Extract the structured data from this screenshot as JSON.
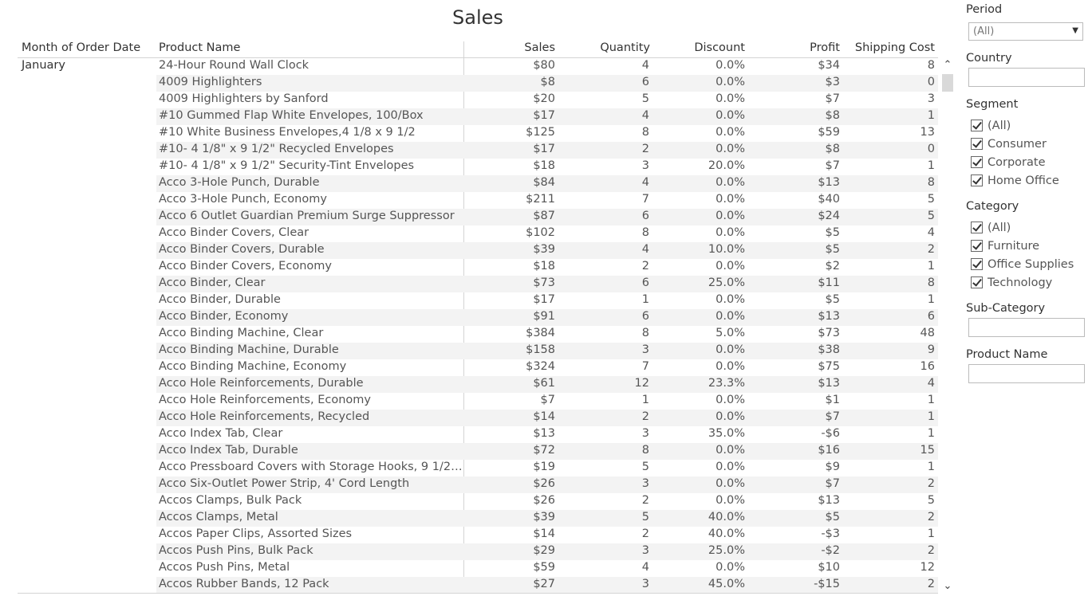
{
  "title": "Sales",
  "columns": {
    "month": "Month of Order Date",
    "product": "Product Name",
    "sales": "Sales",
    "quantity": "Quantity",
    "discount": "Discount",
    "profit": "Profit",
    "shipping": "Shipping Cost"
  },
  "month_value": "January",
  "rows": [
    {
      "name": "24-Hour Round Wall Clock",
      "sales": "$80",
      "qty": "4",
      "disc": "0.0%",
      "profit": "$34",
      "ship": "8"
    },
    {
      "name": "4009 Highlighters",
      "sales": "$8",
      "qty": "6",
      "disc": "0.0%",
      "profit": "$3",
      "ship": "0"
    },
    {
      "name": "4009 Highlighters by Sanford",
      "sales": "$20",
      "qty": "5",
      "disc": "0.0%",
      "profit": "$7",
      "ship": "3"
    },
    {
      "name": "#10 Gummed Flap White Envelopes, 100/Box",
      "sales": "$17",
      "qty": "4",
      "disc": "0.0%",
      "profit": "$8",
      "ship": "1"
    },
    {
      "name": "#10 White Business Envelopes,4 1/8 x 9 1/2",
      "sales": "$125",
      "qty": "8",
      "disc": "0.0%",
      "profit": "$59",
      "ship": "13"
    },
    {
      "name": "#10- 4 1/8\" x 9 1/2\" Recycled Envelopes",
      "sales": "$17",
      "qty": "2",
      "disc": "0.0%",
      "profit": "$8",
      "ship": "0"
    },
    {
      "name": "#10- 4 1/8\" x 9 1/2\" Security-Tint Envelopes",
      "sales": "$18",
      "qty": "3",
      "disc": "20.0%",
      "profit": "$7",
      "ship": "1"
    },
    {
      "name": "Acco 3-Hole Punch, Durable",
      "sales": "$84",
      "qty": "4",
      "disc": "0.0%",
      "profit": "$13",
      "ship": "8"
    },
    {
      "name": "Acco 3-Hole Punch, Economy",
      "sales": "$211",
      "qty": "7",
      "disc": "0.0%",
      "profit": "$40",
      "ship": "5"
    },
    {
      "name": "Acco 6 Outlet Guardian Premium Surge Suppressor",
      "sales": "$87",
      "qty": "6",
      "disc": "0.0%",
      "profit": "$24",
      "ship": "5"
    },
    {
      "name": "Acco Binder Covers, Clear",
      "sales": "$102",
      "qty": "8",
      "disc": "0.0%",
      "profit": "$5",
      "ship": "4"
    },
    {
      "name": "Acco Binder Covers, Durable",
      "sales": "$39",
      "qty": "4",
      "disc": "10.0%",
      "profit": "$5",
      "ship": "2"
    },
    {
      "name": "Acco Binder Covers, Economy",
      "sales": "$18",
      "qty": "2",
      "disc": "0.0%",
      "profit": "$2",
      "ship": "1"
    },
    {
      "name": "Acco Binder, Clear",
      "sales": "$73",
      "qty": "6",
      "disc": "25.0%",
      "profit": "$11",
      "ship": "8"
    },
    {
      "name": "Acco Binder, Durable",
      "sales": "$17",
      "qty": "1",
      "disc": "0.0%",
      "profit": "$5",
      "ship": "1"
    },
    {
      "name": "Acco Binder, Economy",
      "sales": "$91",
      "qty": "6",
      "disc": "0.0%",
      "profit": "$13",
      "ship": "6"
    },
    {
      "name": "Acco Binding Machine, Clear",
      "sales": "$384",
      "qty": "8",
      "disc": "5.0%",
      "profit": "$73",
      "ship": "48"
    },
    {
      "name": "Acco Binding Machine, Durable",
      "sales": "$158",
      "qty": "3",
      "disc": "0.0%",
      "profit": "$38",
      "ship": "9"
    },
    {
      "name": "Acco Binding Machine, Economy",
      "sales": "$324",
      "qty": "7",
      "disc": "0.0%",
      "profit": "$75",
      "ship": "16"
    },
    {
      "name": "Acco Hole Reinforcements, Durable",
      "sales": "$61",
      "qty": "12",
      "disc": "23.3%",
      "profit": "$13",
      "ship": "4"
    },
    {
      "name": "Acco Hole Reinforcements, Economy",
      "sales": "$7",
      "qty": "1",
      "disc": "0.0%",
      "profit": "$1",
      "ship": "1"
    },
    {
      "name": "Acco Hole Reinforcements, Recycled",
      "sales": "$14",
      "qty": "2",
      "disc": "0.0%",
      "profit": "$7",
      "ship": "1"
    },
    {
      "name": "Acco Index Tab, Clear",
      "sales": "$13",
      "qty": "3",
      "disc": "35.0%",
      "profit": "-$6",
      "ship": "1"
    },
    {
      "name": "Acco Index Tab, Durable",
      "sales": "$72",
      "qty": "8",
      "disc": "0.0%",
      "profit": "$16",
      "ship": "15"
    },
    {
      "name": "Acco Pressboard Covers with Storage Hooks, 9 1/2\" x..",
      "sales": "$19",
      "qty": "5",
      "disc": "0.0%",
      "profit": "$9",
      "ship": "1"
    },
    {
      "name": "Acco Six-Outlet Power Strip, 4' Cord Length",
      "sales": "$26",
      "qty": "3",
      "disc": "0.0%",
      "profit": "$7",
      "ship": "2"
    },
    {
      "name": "Accos Clamps, Bulk Pack",
      "sales": "$26",
      "qty": "2",
      "disc": "0.0%",
      "profit": "$13",
      "ship": "5"
    },
    {
      "name": "Accos Clamps, Metal",
      "sales": "$39",
      "qty": "5",
      "disc": "40.0%",
      "profit": "$5",
      "ship": "2"
    },
    {
      "name": "Accos Paper Clips, Assorted Sizes",
      "sales": "$14",
      "qty": "2",
      "disc": "40.0%",
      "profit": "-$3",
      "ship": "1"
    },
    {
      "name": "Accos Push Pins, Bulk Pack",
      "sales": "$29",
      "qty": "3",
      "disc": "25.0%",
      "profit": "-$2",
      "ship": "2"
    },
    {
      "name": "Accos Push Pins, Metal",
      "sales": "$59",
      "qty": "4",
      "disc": "0.0%",
      "profit": "$10",
      "ship": "12"
    },
    {
      "name": "Accos Rubber Bands, 12 Pack",
      "sales": "$27",
      "qty": "3",
      "disc": "45.0%",
      "profit": "-$15",
      "ship": "2"
    }
  ],
  "filters": {
    "period": {
      "label": "Period",
      "value": "(All)"
    },
    "country": {
      "label": "Country"
    },
    "segment": {
      "label": "Segment",
      "options": [
        "(All)",
        "Consumer",
        "Corporate",
        "Home Office"
      ]
    },
    "category": {
      "label": "Category",
      "options": [
        "(All)",
        "Furniture",
        "Office Supplies",
        "Technology"
      ]
    },
    "subcategory": {
      "label": "Sub-Category"
    },
    "product": {
      "label": "Product Name"
    }
  },
  "icons": {
    "scroll_up": "chevron-up-icon",
    "scroll_down": "chevron-down-icon",
    "dropdown": "caret-down-icon"
  }
}
